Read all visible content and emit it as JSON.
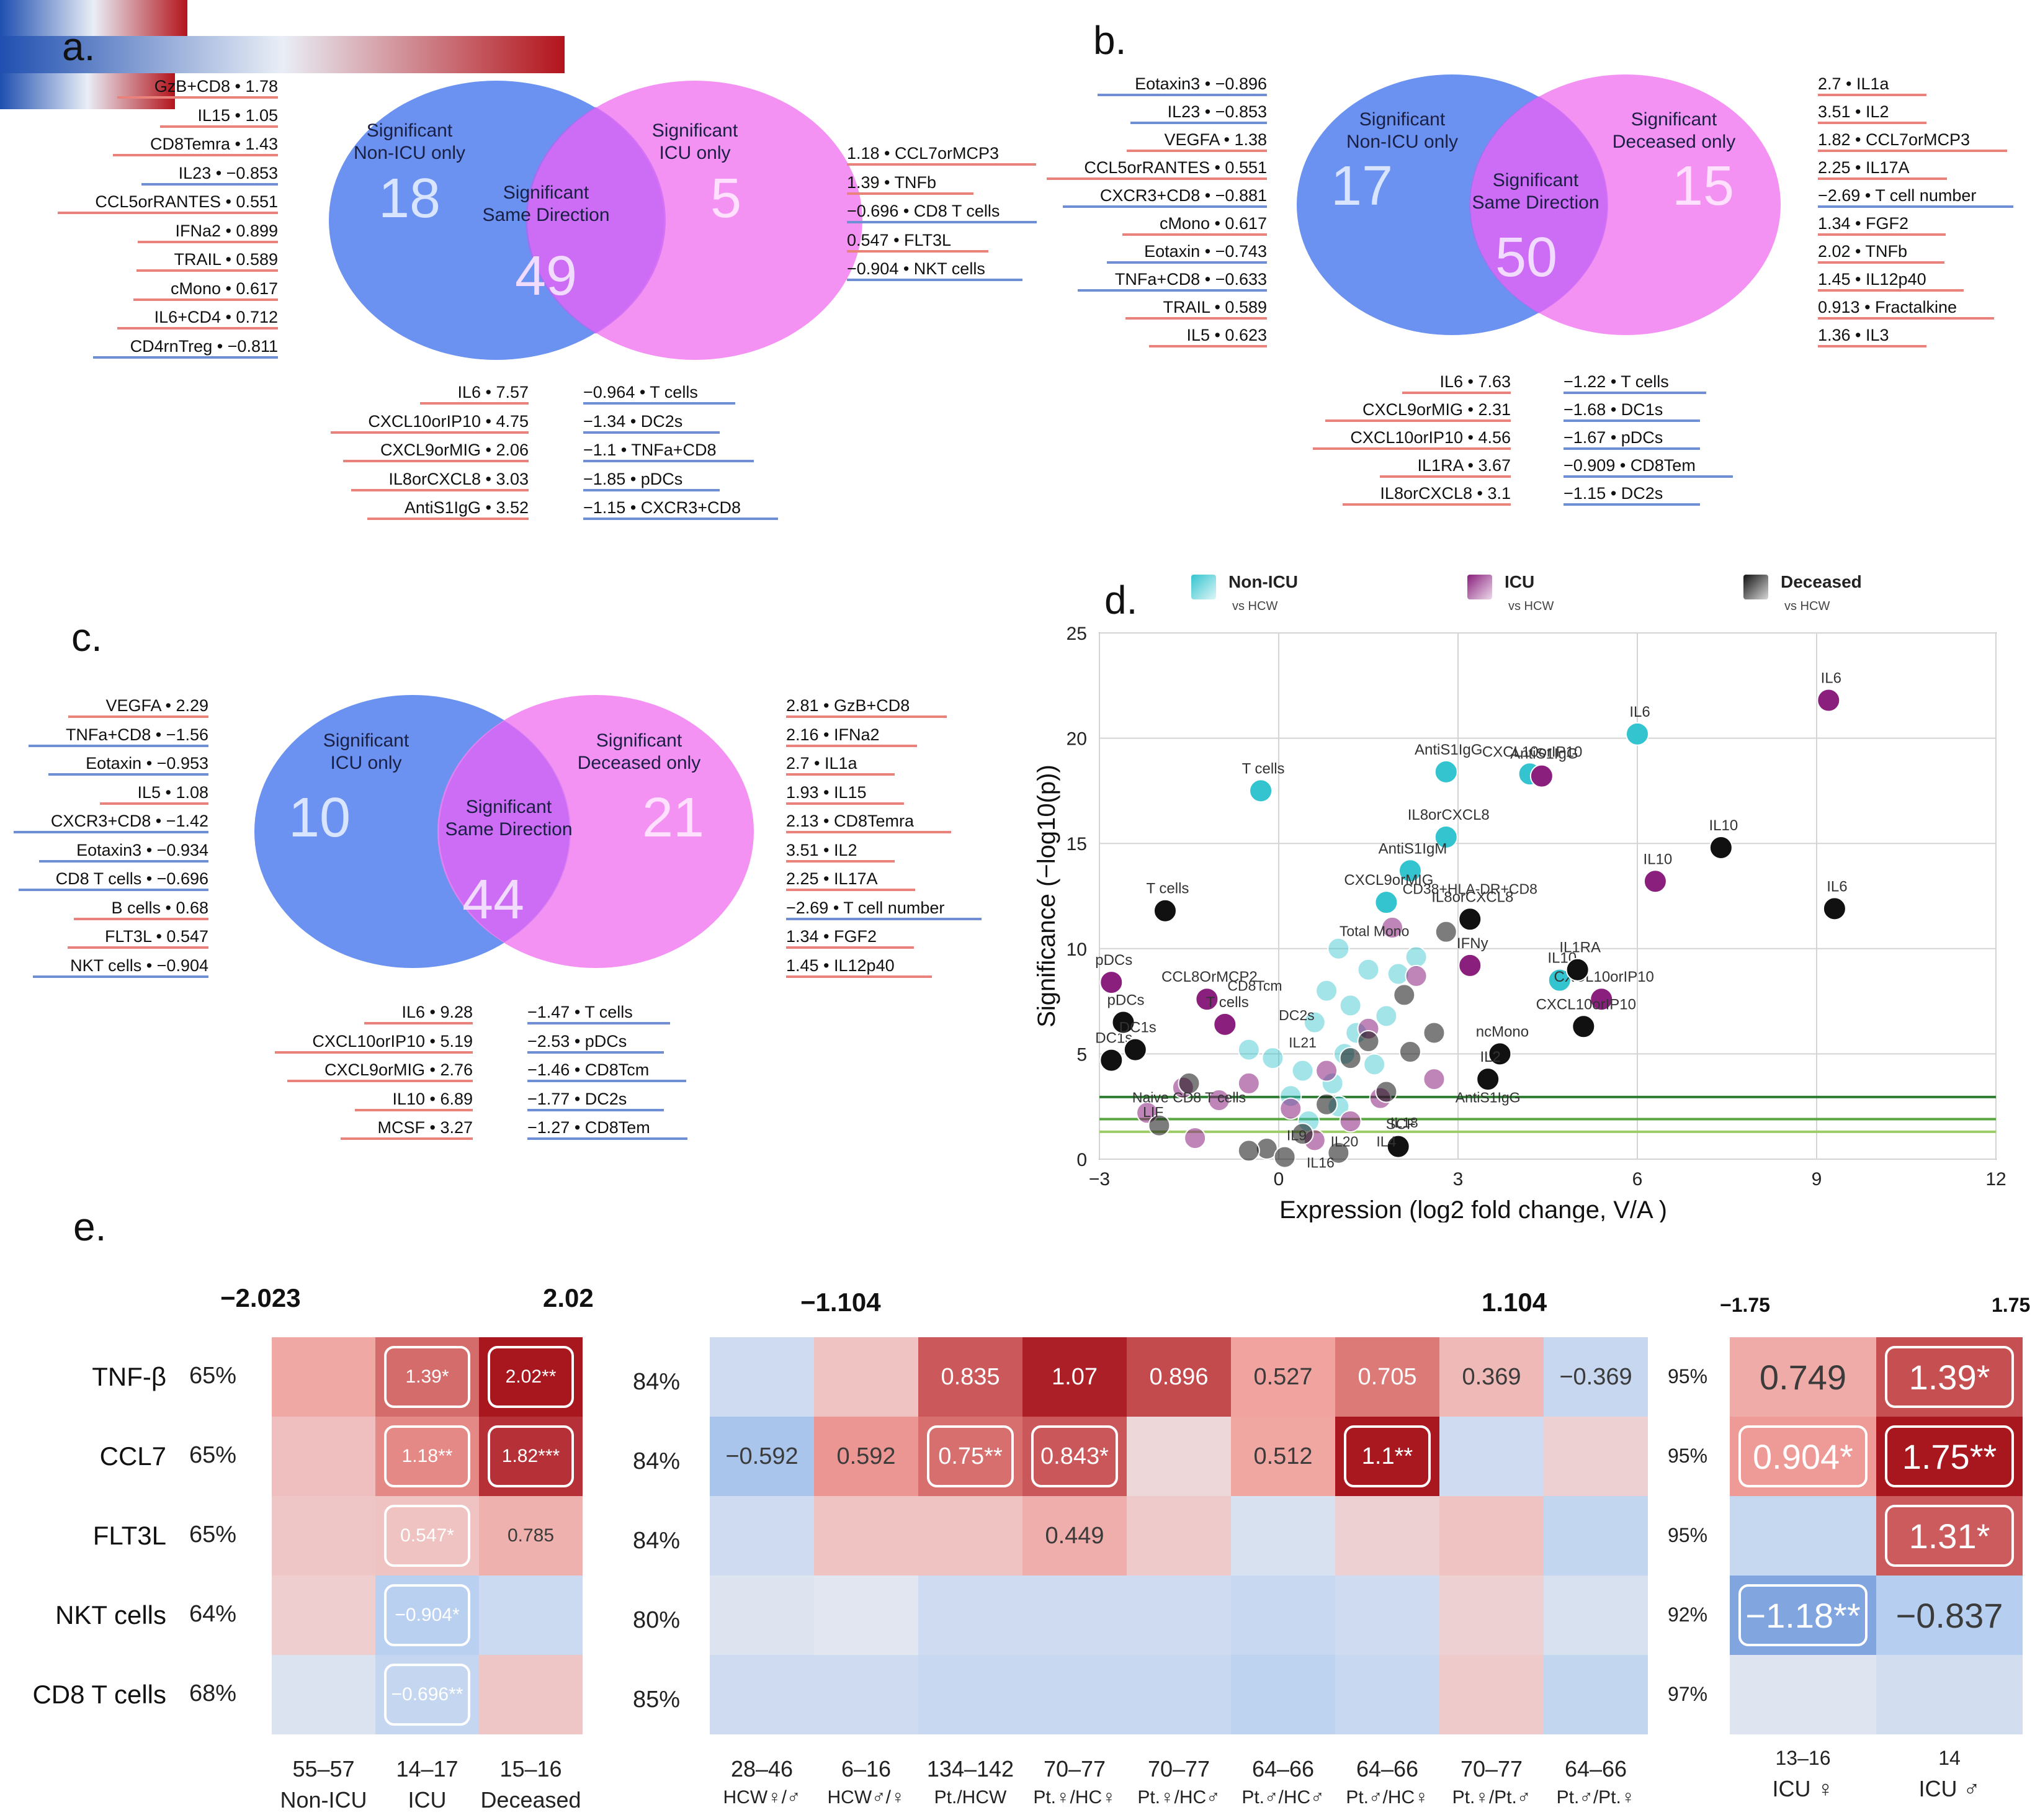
{
  "panels": {
    "a": {
      "letter": "a.",
      "venn": {
        "left_title": "Significant\nNon-ICU only",
        "left_count": "18",
        "mid_title": "Significant\nSame Direction",
        "mid_count": "49",
        "right_title": "Significant\nICU only",
        "right_count": "5"
      },
      "left_list": [
        {
          "t": "GzB+CD8 • 1.78",
          "c": "red"
        },
        {
          "t": "IL15 • 1.05",
          "c": "red"
        },
        {
          "t": "CD8Temra • 1.43",
          "c": "red"
        },
        {
          "t": "IL23 • −0.853",
          "c": "blue"
        },
        {
          "t": "CCL5orRANTES • 0.551",
          "c": "red"
        },
        {
          "t": "IFNa2 • 0.899",
          "c": "red"
        },
        {
          "t": "TRAIL • 0.589",
          "c": "red"
        },
        {
          "t": "cMono • 0.617",
          "c": "red"
        },
        {
          "t": "IL6+CD4 • 0.712",
          "c": "red"
        },
        {
          "t": "CD4rnTreg • −0.811",
          "c": "blue"
        }
      ],
      "right_list": [
        {
          "t": "1.18 • CCL7orMCP3",
          "c": "red"
        },
        {
          "t": "1.39 • TNFb",
          "c": "red"
        },
        {
          "t": "−0.696 • CD8 T cells",
          "c": "blue"
        },
        {
          "t": "0.547 • FLT3L",
          "c": "red"
        },
        {
          "t": "−0.904 • NKT cells",
          "c": "blue"
        }
      ],
      "bottom_left": [
        {
          "t": "IL6 • 7.57",
          "c": "red"
        },
        {
          "t": "CXCL10orIP10 • 4.75",
          "c": "red"
        },
        {
          "t": "CXCL9orMIG • 2.06",
          "c": "red"
        },
        {
          "t": "IL8orCXCL8 • 3.03",
          "c": "red"
        },
        {
          "t": "AntiS1IgG • 3.52",
          "c": "red"
        }
      ],
      "bottom_right": [
        {
          "t": "−0.964 • T cells",
          "c": "blue"
        },
        {
          "t": "−1.34 • DC2s",
          "c": "blue"
        },
        {
          "t": "−1.1 • TNFa+CD8",
          "c": "blue"
        },
        {
          "t": "−1.85 • pDCs",
          "c": "blue"
        },
        {
          "t": "−1.15 • CXCR3+CD8",
          "c": "blue"
        }
      ]
    },
    "b": {
      "letter": "b.",
      "venn": {
        "left_title": "Significant\nNon-ICU only",
        "left_count": "17",
        "mid_title": "Significant\nSame Direction",
        "mid_count": "50",
        "right_title": "Significant\nDeceased only",
        "right_count": "15"
      },
      "left_list": [
        {
          "t": "Eotaxin3 • −0.896",
          "c": "blue"
        },
        {
          "t": "IL23 • −0.853",
          "c": "blue"
        },
        {
          "t": "VEGFA • 1.38",
          "c": "red"
        },
        {
          "t": "CCL5orRANTES • 0.551",
          "c": "red"
        },
        {
          "t": "CXCR3+CD8 • −0.881",
          "c": "blue"
        },
        {
          "t": "cMono • 0.617",
          "c": "red"
        },
        {
          "t": "Eotaxin • −0.743",
          "c": "blue"
        },
        {
          "t": "TNFa+CD8 • −0.633",
          "c": "blue"
        },
        {
          "t": "TRAIL • 0.589",
          "c": "red"
        },
        {
          "t": "IL5 • 0.623",
          "c": "red"
        }
      ],
      "right_list": [
        {
          "t": "2.7 • IL1a",
          "c": "red"
        },
        {
          "t": "3.51 • IL2",
          "c": "red"
        },
        {
          "t": "1.82 • CCL7orMCP3",
          "c": "red"
        },
        {
          "t": "2.25 • IL17A",
          "c": "red"
        },
        {
          "t": "−2.69 • T cell number",
          "c": "blue"
        },
        {
          "t": "1.34 • FGF2",
          "c": "red"
        },
        {
          "t": "2.02 • TNFb",
          "c": "red"
        },
        {
          "t": "1.45 • IL12p40",
          "c": "red"
        },
        {
          "t": "0.913 • Fractalkine",
          "c": "red"
        },
        {
          "t": "1.36 • IL3",
          "c": "red"
        }
      ],
      "bottom_left": [
        {
          "t": "IL6 • 7.63",
          "c": "red"
        },
        {
          "t": "CXCL9orMIG • 2.31",
          "c": "red"
        },
        {
          "t": "CXCL10orIP10 • 4.56",
          "c": "red"
        },
        {
          "t": "IL1RA • 3.67",
          "c": "red"
        },
        {
          "t": "IL8orCXCL8 • 3.1",
          "c": "red"
        }
      ],
      "bottom_right": [
        {
          "t": "−1.22 • T cells",
          "c": "blue"
        },
        {
          "t": "−1.68 • DC1s",
          "c": "blue"
        },
        {
          "t": "−1.67 • pDCs",
          "c": "blue"
        },
        {
          "t": "−0.909 • CD8Tem",
          "c": "blue"
        },
        {
          "t": "−1.15 • DC2s",
          "c": "blue"
        }
      ]
    },
    "c": {
      "letter": "c.",
      "venn": {
        "left_title": "Significant\nICU only",
        "left_count": "10",
        "mid_title": "Significant\nSame Direction",
        "mid_count": "44",
        "right_title": "Significant\nDeceased only",
        "right_count": "21"
      },
      "left_list": [
        {
          "t": "VEGFA • 2.29",
          "c": "red"
        },
        {
          "t": "TNFa+CD8 • −1.56",
          "c": "blue"
        },
        {
          "t": "Eotaxin • −0.953",
          "c": "blue"
        },
        {
          "t": "IL5 • 1.08",
          "c": "red"
        },
        {
          "t": "CXCR3+CD8 • −1.42",
          "c": "blue"
        },
        {
          "t": "Eotaxin3 • −0.934",
          "c": "blue"
        },
        {
          "t": "CD8 T cells • −0.696",
          "c": "blue"
        },
        {
          "t": "B cells • 0.68",
          "c": "red"
        },
        {
          "t": "FLT3L • 0.547",
          "c": "red"
        },
        {
          "t": "NKT cells • −0.904",
          "c": "blue"
        }
      ],
      "right_list": [
        {
          "t": "2.81 • GzB+CD8",
          "c": "red"
        },
        {
          "t": "2.16 • IFNa2",
          "c": "red"
        },
        {
          "t": "2.7 • IL1a",
          "c": "red"
        },
        {
          "t": "1.93 • IL15",
          "c": "red"
        },
        {
          "t": "2.13 • CD8Temra",
          "c": "red"
        },
        {
          "t": "3.51 • IL2",
          "c": "red"
        },
        {
          "t": "2.25 • IL17A",
          "c": "red"
        },
        {
          "t": "−2.69 • T cell number",
          "c": "blue"
        },
        {
          "t": "1.34 • FGF2",
          "c": "red"
        },
        {
          "t": "1.45 • IL12p40",
          "c": "red"
        }
      ],
      "bottom_left": [
        {
          "t": "IL6 • 9.28",
          "c": "red"
        },
        {
          "t": "CXCL10orIP10 • 5.19",
          "c": "red"
        },
        {
          "t": "CXCL9orMIG • 2.76",
          "c": "red"
        },
        {
          "t": "IL10 • 6.89",
          "c": "red"
        },
        {
          "t": "MCSF • 3.27",
          "c": "red"
        }
      ],
      "bottom_right": [
        {
          "t": "−1.47 • T cells",
          "c": "blue"
        },
        {
          "t": "−2.53 • pDCs",
          "c": "blue"
        },
        {
          "t": "−1.46 • CD8Tcm",
          "c": "blue"
        },
        {
          "t": "−1.77 • DC2s",
          "c": "blue"
        },
        {
          "t": "−1.27 • CD8Tem",
          "c": "blue"
        }
      ]
    },
    "d": {
      "letter": "d.",
      "legend": [
        {
          "name": "Non-ICU",
          "sub": "vs HCW",
          "color": "#33c4cf"
        },
        {
          "name": "ICU",
          "sub": "vs HCW",
          "color": "#8a1f7e"
        },
        {
          "name": "Deceased",
          "sub": "vs HCW",
          "color": "#111111"
        }
      ]
    },
    "e": {
      "letter": "e.",
      "row_labels": [
        "TNF-β",
        "CCL7",
        "FLT3L",
        "NKT cells",
        "CD8 T cells"
      ],
      "left": {
        "cb_min": "−2.023",
        "cb_max": "2.02",
        "row_pcts": [
          "65%",
          "65%",
          "65%",
          "64%",
          "68%"
        ],
        "col_ranges": [
          "55–57",
          "14–17",
          "15–16"
        ],
        "col_groups": [
          "Non-ICU",
          "ICU",
          "Deceased"
        ],
        "cells": [
          [
            "",
            "1.39*",
            "2.02**"
          ],
          [
            "",
            "1.18**",
            "1.82***"
          ],
          [
            "",
            "0.547*",
            "0.785"
          ],
          [
            "",
            "−0.904*",
            ""
          ],
          [
            "",
            "−0.696**",
            ""
          ]
        ]
      },
      "mid": {
        "cb_min": "−1.104",
        "cb_max": "1.104",
        "row_pcts": [
          "84%",
          "84%",
          "84%",
          "80%",
          "85%"
        ],
        "col_ranges": [
          "28–46",
          "6–16",
          "134–142",
          "70–77",
          "70–77",
          "64–66",
          "64–66",
          "70–77",
          "64–66"
        ],
        "col_groups": [
          "HCW♀/♂",
          "HCW♂/♀",
          "Pt./HCW",
          "Pt.♀/HC♀",
          "Pt.♀/HC♂",
          "Pt.♂/HC♂",
          "Pt.♂/HC♀",
          "Pt.♀/Pt.♂",
          "Pt.♂/Pt.♀"
        ],
        "cells": [
          [
            "",
            "",
            "0.835",
            "1.07",
            "0.896",
            "0.527",
            "0.705",
            "0.369",
            "−0.369"
          ],
          [
            "−0.592",
            "0.592",
            "0.75**",
            "0.843*",
            "",
            "0.512",
            "1.1**",
            "",
            ""
          ],
          [
            "",
            "",
            "",
            "0.449",
            "",
            "",
            "",
            "",
            ""
          ],
          [
            "",
            "",
            "",
            "",
            "",
            "",
            "",
            "",
            ""
          ],
          [
            "",
            "",
            "",
            "",
            "",
            "",
            "",
            "",
            ""
          ]
        ]
      },
      "right": {
        "cb_min": "−1.75",
        "cb_max": "1.75",
        "row_pcts": [
          "95%",
          "95%",
          "95%",
          "92%",
          "97%"
        ],
        "col_ranges": [
          "13–16",
          "14"
        ],
        "col_groups": [
          "ICU ♀",
          "ICU ♂"
        ],
        "cells": [
          [
            "0.749",
            "1.39*"
          ],
          [
            "0.904*",
            "1.75**"
          ],
          [
            "",
            "1.31*"
          ],
          [
            "−1.18**",
            "−0.837"
          ],
          [
            "",
            ""
          ]
        ]
      }
    }
  },
  "chart_data": {
    "type": "scatter",
    "title": "",
    "xlabel": "Expression (log2 fold change, V/A )",
    "ylabel": "Significance (−log10(p))",
    "xlim": [
      -3,
      12
    ],
    "ylim": [
      0,
      25
    ],
    "xticks": [
      "−3",
      "0",
      "3",
      "6",
      "9",
      "12"
    ],
    "yticks": [
      "0",
      "5",
      "10",
      "15",
      "20",
      "25"
    ],
    "series": [
      {
        "name": "Non-ICU",
        "color": "#33c4cf",
        "points": [
          [
            6.0,
            20.2,
            "IL6"
          ],
          [
            2.8,
            18.4,
            "AntiS1IgG"
          ],
          [
            -0.3,
            17.5,
            "T cells"
          ],
          [
            4.2,
            18.3,
            "CXCL10orIP10"
          ],
          [
            2.8,
            15.3,
            "IL8orCXCL8"
          ],
          [
            2.2,
            13.7,
            "AntiS1IgM"
          ],
          [
            1.8,
            12.2,
            "CXCL9orMIG"
          ],
          [
            4.7,
            8.5,
            "IL10"
          ],
          [
            -0.5,
            5.2,
            ""
          ],
          [
            -0.1,
            4.8,
            ""
          ],
          [
            0.8,
            8.0,
            ""
          ],
          [
            1.2,
            7.3,
            ""
          ],
          [
            0.6,
            6.5,
            ""
          ],
          [
            1.5,
            9.0,
            ""
          ],
          [
            1.0,
            10.0,
            ""
          ],
          [
            2.0,
            8.8,
            ""
          ],
          [
            1.3,
            6.0,
            ""
          ],
          [
            1.8,
            6.8,
            ""
          ],
          [
            0.4,
            4.2,
            ""
          ],
          [
            1.1,
            5.0,
            ""
          ],
          [
            2.3,
            9.6,
            ""
          ],
          [
            0.9,
            3.6,
            ""
          ],
          [
            0.2,
            3.0,
            ""
          ],
          [
            1.6,
            4.5,
            ""
          ],
          [
            1.0,
            2.5,
            ""
          ],
          [
            0.5,
            1.8,
            ""
          ]
        ]
      },
      {
        "name": "ICU",
        "color": "#8a1f7e",
        "points": [
          [
            9.2,
            21.8,
            "IL6"
          ],
          [
            4.4,
            18.2,
            "AntiS1IgG"
          ],
          [
            6.3,
            13.2,
            "IL10"
          ],
          [
            5.4,
            7.6,
            "CXCL10orIP10"
          ],
          [
            3.2,
            9.2,
            "IFNy"
          ],
          [
            -2.8,
            8.4,
            "pDCs"
          ],
          [
            -1.2,
            7.6,
            "CCL8OrMCP2"
          ],
          [
            -0.9,
            6.4,
            "T cells"
          ],
          [
            1.9,
            11.0,
            ""
          ],
          [
            2.3,
            8.7,
            ""
          ],
          [
            1.5,
            6.2,
            ""
          ],
          [
            0.8,
            4.2,
            ""
          ],
          [
            -0.5,
            3.6,
            ""
          ],
          [
            0.2,
            2.4,
            ""
          ],
          [
            1.2,
            1.8,
            ""
          ],
          [
            -1.0,
            2.8,
            ""
          ],
          [
            -1.6,
            3.4,
            ""
          ],
          [
            2.6,
            3.8,
            ""
          ],
          [
            0.6,
            0.9,
            ""
          ],
          [
            -1.4,
            1.0,
            ""
          ],
          [
            -2.2,
            2.2,
            ""
          ],
          [
            1.7,
            2.9,
            ""
          ]
        ]
      },
      {
        "name": "Deceased",
        "color": "#111111",
        "points": [
          [
            7.4,
            14.8,
            "IL10"
          ],
          [
            9.3,
            11.9,
            "IL6"
          ],
          [
            5.0,
            9.0,
            "IL1RA"
          ],
          [
            5.1,
            6.3,
            "CXCL10orIP10"
          ],
          [
            3.2,
            11.4,
            "IL8orCXCL8"
          ],
          [
            -1.9,
            11.8,
            "T cells"
          ],
          [
            3.7,
            5.0,
            "ncMono"
          ],
          [
            3.5,
            3.8,
            "IL2"
          ],
          [
            -2.8,
            4.7,
            "DC1s"
          ],
          [
            -2.6,
            6.5,
            "pDCs"
          ],
          [
            -2.4,
            5.2,
            "DC1s"
          ],
          [
            2.8,
            10.8,
            ""
          ],
          [
            2.1,
            7.8,
            ""
          ],
          [
            2.6,
            6.0,
            ""
          ],
          [
            1.2,
            4.8,
            ""
          ],
          [
            1.8,
            3.2,
            ""
          ],
          [
            0.8,
            2.6,
            ""
          ],
          [
            0.4,
            1.2,
            ""
          ],
          [
            -0.2,
            0.5,
            ""
          ],
          [
            1.0,
            0.3,
            ""
          ],
          [
            -1.5,
            3.6,
            ""
          ],
          [
            -2.0,
            1.6,
            ""
          ],
          [
            2.2,
            5.1,
            ""
          ],
          [
            1.5,
            5.6,
            ""
          ],
          [
            2.0,
            0.6,
            "SCF"
          ],
          [
            -0.5,
            0.4,
            ""
          ],
          [
            0.1,
            0.1,
            ""
          ]
        ]
      }
    ],
    "annotations": [
      "Naive CD8 T cells",
      "LIF",
      "DC2s",
      "IL21",
      "CD8Tcm",
      "Total Mono",
      "CD38+HLA-DR+CD8",
      "IL18",
      "IL20",
      "IL16",
      "IL4",
      "IL9",
      "AntiS1IgG"
    ]
  }
}
